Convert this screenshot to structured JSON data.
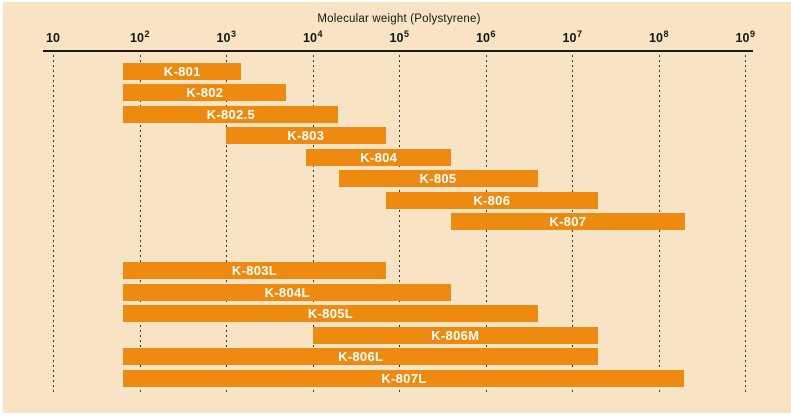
{
  "page": {
    "background_color": "#ffffff",
    "panel_color": "#f8e3c4"
  },
  "chart_data": {
    "type": "bar",
    "variant": "horizontal-range-bars",
    "title": "Molecular weight (Polystyrene)",
    "bar_color": "#ee8a10",
    "bar_label_color": "#ffffff",
    "grid": "dashed-vertical",
    "legend": "none",
    "x_axis": {
      "scale": "log10",
      "min": 10,
      "max": 1000000000,
      "ticks": [
        {
          "base": "10",
          "exp": ""
        },
        {
          "base": "10",
          "exp": "2"
        },
        {
          "base": "10",
          "exp": "3"
        },
        {
          "base": "10",
          "exp": "4"
        },
        {
          "base": "10",
          "exp": "5"
        },
        {
          "base": "10",
          "exp": "6"
        },
        {
          "base": "10",
          "exp": "7"
        },
        {
          "base": "10",
          "exp": "8"
        },
        {
          "base": "10",
          "exp": "9"
        }
      ]
    },
    "groups": [
      {
        "bars": [
          {
            "label": "K-801",
            "from": 65,
            "to": 1500
          },
          {
            "label": "K-802",
            "from": 65,
            "to": 5000
          },
          {
            "label": "K-802.5",
            "from": 65,
            "to": 20000
          },
          {
            "label": "K-803",
            "from": 1000,
            "to": 70000
          },
          {
            "label": "K-804",
            "from": 8500,
            "to": 400000
          },
          {
            "label": "K-805",
            "from": 20000,
            "to": 4000000
          },
          {
            "label": "K-806",
            "from": 70000,
            "to": 20000000
          },
          {
            "label": "K-807",
            "from": 400000,
            "to": 200000000
          }
        ]
      },
      {
        "bars": [
          {
            "label": "K-803L",
            "from": 65,
            "to": 70000
          },
          {
            "label": "K-804L",
            "from": 65,
            "to": 400000
          },
          {
            "label": "K-805L",
            "from": 65,
            "to": 4000000
          },
          {
            "label": "K-806M",
            "from": 10000,
            "to": 20000000
          },
          {
            "label": "K-806L",
            "from": 65,
            "to": 20000000
          },
          {
            "label": "K-807L",
            "from": 65,
            "to": 200000000
          }
        ]
      }
    ]
  }
}
